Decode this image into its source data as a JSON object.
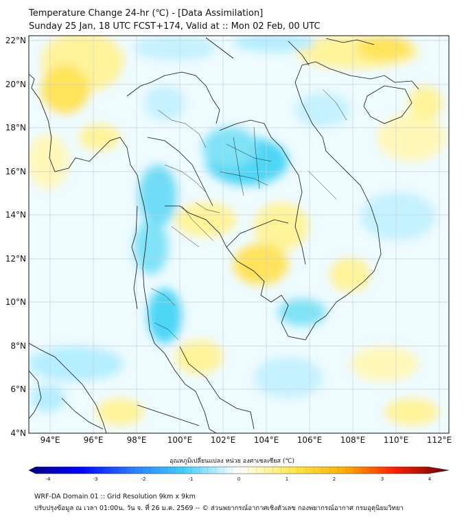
{
  "title_line1": "Temperature Change 24-hr (℃) - [Data Assimilation]",
  "title_line2": "Sunday 25 Jan, 18 UTC FCST+174, Valid at :: Mon 02 Feb, 00 UTC",
  "lat_labels": [
    "22°N",
    "20°N",
    "18°N",
    "16°N",
    "14°N",
    "12°N",
    "10°N",
    "8°N",
    "6°N",
    "4°N"
  ],
  "lon_labels": [
    "94°E",
    "96°E",
    "98°E",
    "100°E",
    "102°E",
    "104°E",
    "106°E",
    "108°E",
    "110°E",
    "112°E"
  ],
  "colorbar": {
    "title": "อุณหภูมิเปลี่ยนแปลง หน่วย องศาเซลเซียส (℃)",
    "tick_labels": [
      "-4",
      "-3",
      "-2",
      "-1",
      "0",
      "1",
      "2",
      "3",
      "4"
    ],
    "min": -4,
    "max": 4,
    "colors": [
      "#00007f",
      "#0000ff",
      "#3f8fff",
      "#3fcfff",
      "#c8f4ff",
      "#ffffff",
      "#fff9c0",
      "#ffe040",
      "#ffa000",
      "#ff2000",
      "#cc0000",
      "#7a0000"
    ]
  },
  "footer_line1": "WRF-DA Domain 01 :: Grid Resolution 9km x 9km",
  "footer_line2": "ปรับปรุงข้อมูล ณ เวลา 01:00น. วัน จ. ที่ 26 ม.ค. 2569 -- © ส่วนพยากรณ์อากาศเชิงตัวเลข กองพยากรณ์อากาศ กรมอุตุนิยมวิทยา",
  "colors": {
    "cool": "#a8ecff",
    "cold": "#3fd3f5",
    "warm": "#fff39a",
    "hot": "#ffd84a",
    "line": "#111111"
  }
}
